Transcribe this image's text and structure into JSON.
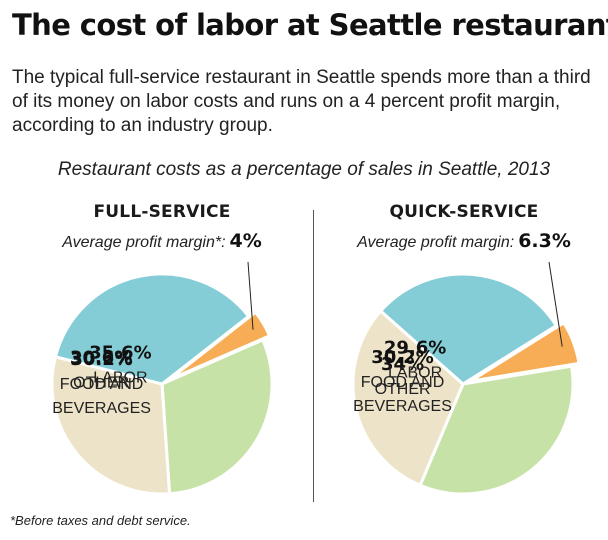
{
  "title": "The cost of labor at Seattle restaurants",
  "intro": "The typical full-service restaurant in Seattle spends more than a third of its money on labor costs and runs on a 4 percent profit margin, according to an industry group.",
  "subtitle": "Restaurant costs as a percentage of sales in Seattle, 2013",
  "footnote": "*Before taxes and debt service.",
  "colors": {
    "labor": "#84cdd6",
    "other": "#c6e2a6",
    "food": "#ede3c8",
    "profit": "#f7ad55",
    "divider": "#555555"
  },
  "chart_data": [
    {
      "type": "pie",
      "title": "FULL-SERVICE",
      "margin_label": "Average profit margin*:",
      "margin_value": "4%",
      "slices": [
        {
          "key": "profit",
          "value": 4.0,
          "value_label": "",
          "name_label": ""
        },
        {
          "key": "other",
          "value": 30.6,
          "value_label": "30.6%",
          "name_label": "OTHER"
        },
        {
          "key": "food",
          "value": 30.2,
          "value_label": "30.2%",
          "name_label": "FOOD AND BEVERAGES"
        },
        {
          "key": "labor",
          "value": 35.6,
          "value_label": "35.6%",
          "name_label": "LABOR"
        }
      ]
    },
    {
      "type": "pie",
      "title": "QUICK-SERVICE",
      "margin_label": "Average profit margin:",
      "margin_value": "6.3%",
      "slices": [
        {
          "key": "profit",
          "value": 6.3,
          "value_label": "",
          "name_label": ""
        },
        {
          "key": "other",
          "value": 34,
          "value_label": "34%",
          "name_label": "OTHER"
        },
        {
          "key": "food",
          "value": 30.2,
          "value_label": "30.2%",
          "name_label": "FOOD AND BEVERAGES"
        },
        {
          "key": "labor",
          "value": 29.6,
          "value_label": "29.6%",
          "name_label": "LABOR"
        }
      ]
    }
  ]
}
